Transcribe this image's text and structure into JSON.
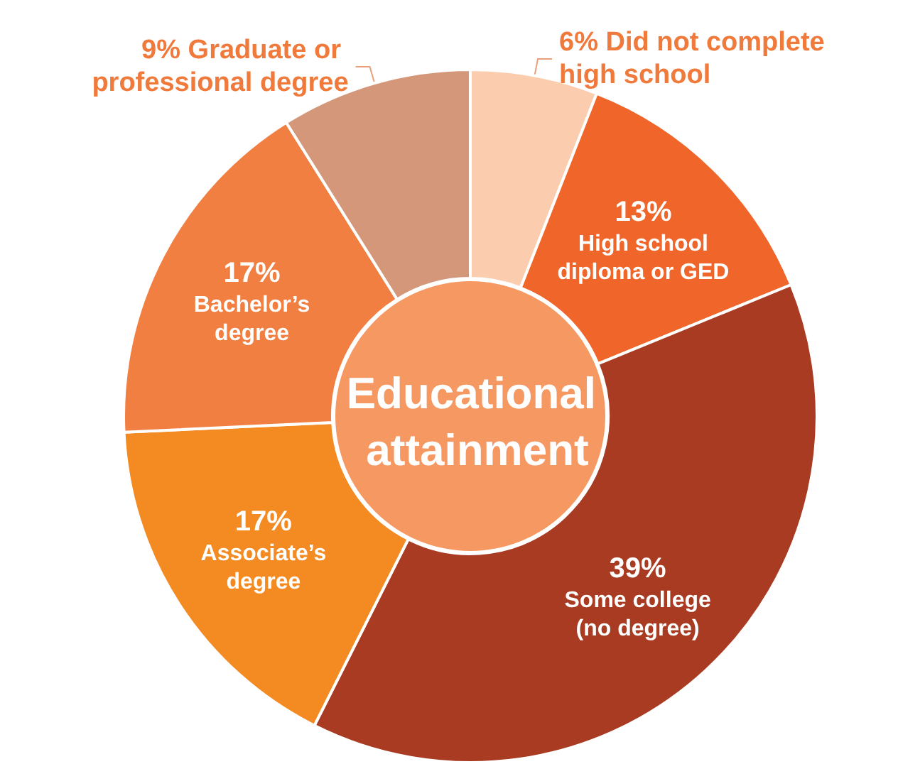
{
  "chart_data": {
    "type": "donut",
    "title": "Educational attainment",
    "categories": [
      "Did not complete high school",
      "High school diploma or GED",
      "Some college (no degree)",
      "Associate’s degree",
      "Bachelor’s degree",
      "Graduate or professional degree"
    ],
    "values": [
      6,
      13,
      39,
      17,
      17,
      9
    ],
    "value_labels": [
      "6%",
      "13%",
      "39%",
      "17%",
      "17%",
      "9%"
    ],
    "colors": [
      "#fbcdae",
      "#f0652a",
      "#a83b22",
      "#f38a22",
      "#f27f42",
      "#d4977a"
    ],
    "legend": false
  }
}
